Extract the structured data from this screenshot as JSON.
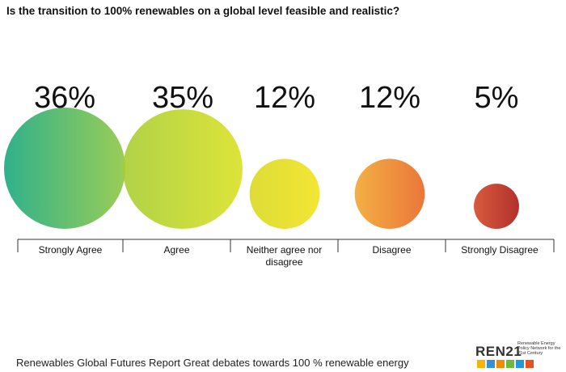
{
  "title": "Is the transition to 100% renewables on a global level feasible and realistic?",
  "chart_data": {
    "type": "bubble",
    "categories": [
      "Strongly Agree",
      "Agree",
      "Neither agree nor disagree",
      "Disagree",
      "Strongly Disagree"
    ],
    "values": [
      36,
      35,
      12,
      12,
      5
    ],
    "value_labels": [
      "36%",
      "35%",
      "12%",
      "12%",
      "5%"
    ],
    "colors": [
      [
        "#13a67c",
        "#8cc63f"
      ],
      [
        "#a6cc2e",
        "#d8e01e"
      ],
      [
        "#d9d81a",
        "#f1e218"
      ],
      [
        "#f1a42a",
        "#e8641e"
      ],
      [
        "#d24423",
        "#a8140f"
      ]
    ]
  },
  "footer": "Renewables Global Futures Report Great debates towards 100 % renewable energy",
  "logo": {
    "name": "REN21",
    "tagline": "Renewable Energy Policy Network for the 21st Century"
  }
}
